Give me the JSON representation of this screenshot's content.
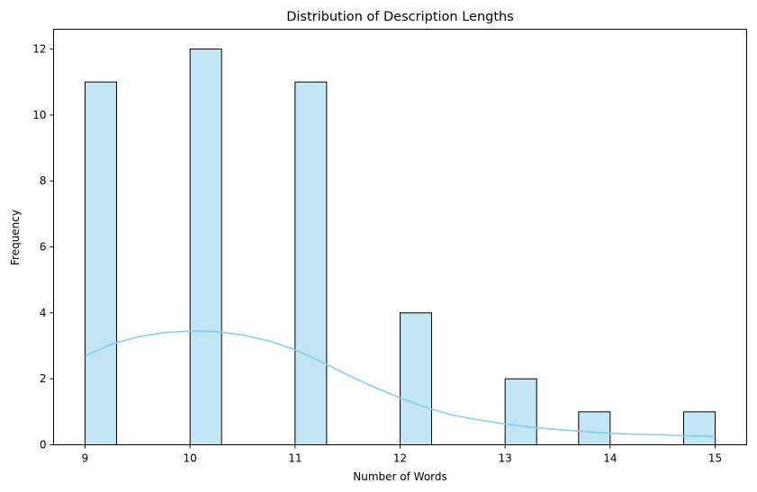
{
  "chart_data": {
    "type": "bar",
    "title": "Distribution of Description Lengths",
    "xlabel": "Number of Words",
    "ylabel": "Frequency",
    "xlim": [
      8.7,
      15.3
    ],
    "ylim": [
      0,
      12.6
    ],
    "xticks": [
      9,
      10,
      11,
      12,
      13,
      14,
      15
    ],
    "yticks": [
      0,
      2,
      4,
      6,
      8,
      10,
      12
    ],
    "bar_color": "#c3e6f4",
    "edge_color": "#000000",
    "kde_color": "#87ceeb",
    "bins": [
      {
        "x0": 9.0,
        "x1": 9.3,
        "count": 11
      },
      {
        "x0": 10.0,
        "x1": 10.3,
        "count": 12
      },
      {
        "x0": 11.0,
        "x1": 11.3,
        "count": 11
      },
      {
        "x0": 12.0,
        "x1": 12.3,
        "count": 4
      },
      {
        "x0": 13.0,
        "x1": 13.3,
        "count": 2
      },
      {
        "x0": 13.7,
        "x1": 14.0,
        "count": 1
      },
      {
        "x0": 14.7,
        "x1": 15.0,
        "count": 1
      }
    ],
    "kde": {
      "x": [
        9.0,
        9.25,
        9.5,
        9.75,
        10.0,
        10.25,
        10.5,
        10.75,
        11.0,
        11.25,
        11.5,
        11.75,
        12.0,
        12.25,
        12.5,
        12.75,
        13.0,
        13.25,
        13.5,
        13.75,
        14.0,
        14.25,
        14.5,
        14.75,
        15.0
      ],
      "y": [
        2.7,
        3.05,
        3.27,
        3.4,
        3.45,
        3.43,
        3.33,
        3.15,
        2.88,
        2.52,
        2.12,
        1.75,
        1.42,
        1.13,
        0.9,
        0.75,
        0.63,
        0.53,
        0.46,
        0.4,
        0.35,
        0.32,
        0.3,
        0.27,
        0.25
      ]
    }
  }
}
